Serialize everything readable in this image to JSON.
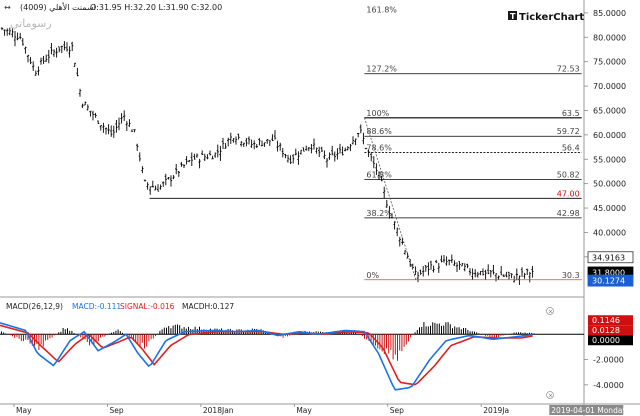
{
  "header": {
    "symbol": "اسمنت الأهلي (4009)",
    "ohlc": "O:31.95 H:32.20 L:31.90 C:32.00"
  },
  "brand": {
    "logo_text": "TickerChart",
    "watermark": "رسوماتي"
  },
  "colors": {
    "price_bars": "#000000",
    "fib_line": "#000000",
    "fib_zero_line": "#e04040",
    "macd_line": "#1a73e8",
    "signal_line": "#e02020",
    "hist_positive": "#000000",
    "hist_negative": "#d01010",
    "badge_blue": "#1a5fd6",
    "badge_red": "#d01010",
    "badge_black": "#000000"
  },
  "chart_data": [
    {
      "type": "ohlc",
      "title": "",
      "y_range": [
        28,
        86
      ],
      "y_ticks": [
        "85.0000",
        "80.0000",
        "75.0000",
        "70.0000",
        "65.0000",
        "60.0000",
        "55.0000",
        "50.0000",
        "45.0000",
        "40.0000",
        "35.0000"
      ],
      "y_tick_values": [
        85,
        80,
        75,
        70,
        65,
        60,
        55,
        50,
        45,
        40,
        35
      ],
      "x_labels": [
        "May",
        "Sep",
        "2018Jan",
        "May",
        "Sep",
        "2019Ja",
        "2019-04-01 Monday"
      ],
      "x_label_months": [
        0,
        4,
        8,
        12,
        16,
        20,
        23
      ],
      "x_range_months": [
        -0.6,
        24.4
      ],
      "price_path": [
        [
          -0.6,
          82
        ],
        [
          0.3,
          80
        ],
        [
          0.9,
          73
        ],
        [
          1.4,
          76
        ],
        [
          2,
          78
        ],
        [
          2.5,
          78
        ],
        [
          2.9,
          67
        ],
        [
          3.6,
          63
        ],
        [
          4.2,
          60
        ],
        [
          4.7,
          64
        ],
        [
          5.2,
          60
        ],
        [
          5.6,
          50
        ],
        [
          6.2,
          49
        ],
        [
          6.9,
          52
        ],
        [
          7.6,
          55
        ],
        [
          8.6,
          56
        ],
        [
          9.4,
          60
        ],
        [
          10.2,
          58
        ],
        [
          11.1,
          59
        ],
        [
          11.8,
          55
        ],
        [
          12.7,
          58
        ],
        [
          13.4,
          55
        ],
        [
          14.2,
          57
        ],
        [
          14.8,
          61
        ],
        [
          15.2,
          56
        ],
        [
          15.6,
          52
        ],
        [
          16.1,
          44
        ],
        [
          16.7,
          37
        ],
        [
          17.2,
          31
        ],
        [
          17.8,
          33
        ],
        [
          18.6,
          34
        ],
        [
          19.6,
          32
        ],
        [
          20.6,
          31.5
        ],
        [
          21.4,
          30.8
        ],
        [
          22.2,
          32
        ]
      ],
      "fibonacci": [
        {
          "ratio": "161.8%",
          "value": "",
          "price": 84.7
        },
        {
          "ratio": "127.2%",
          "value": "72.53",
          "price": 72.53
        },
        {
          "ratio": "100%",
          "value": "63.5",
          "price": 63.5
        },
        {
          "ratio": "88.6%",
          "value": "59.72",
          "price": 59.72
        },
        {
          "ratio": "78.6%",
          "value": "56.4",
          "price": 56.4
        },
        {
          "ratio": "61.8%",
          "value": "50.82",
          "price": 50.82
        },
        {
          "ratio": "",
          "value": "47.00",
          "price": 47.0
        },
        {
          "ratio": "38.2%",
          "value": "42.98",
          "price": 42.98
        },
        {
          "ratio": "0%",
          "value": "30.3",
          "price": 30.3
        }
      ],
      "price_badges": [
        {
          "label": "34.9163",
          "price": 34.9163,
          "style": "outline"
        },
        {
          "label": "31.8000",
          "price": 31.8,
          "style": "black"
        },
        {
          "label": "30.1274",
          "price": 30.1274,
          "style": "blue"
        }
      ]
    },
    {
      "type": "macd",
      "legend": {
        "name": "MACD(26,12,9)",
        "macd": "MACD:-0.111",
        "signal": "SIGNAL:-0.016",
        "macdh": "MACDH:0.127"
      },
      "y_range": [
        -5.2,
        1.6
      ],
      "y_ticks": [
        "-2.0000",
        "-4.0000"
      ],
      "y_tick_values": [
        -2,
        -4
      ],
      "macd_path": [
        [
          -0.6,
          0.9
        ],
        [
          0.5,
          0.3
        ],
        [
          1,
          -1.5
        ],
        [
          1.7,
          -2.5
        ],
        [
          2.4,
          -0.5
        ],
        [
          3,
          0.2
        ],
        [
          3.6,
          -1.3
        ],
        [
          4.3,
          -0.6
        ],
        [
          4.8,
          0
        ],
        [
          5.3,
          -1.5
        ],
        [
          5.8,
          -2.6
        ],
        [
          6.5,
          -0.5
        ],
        [
          7.3,
          0.2
        ],
        [
          8.5,
          0.3
        ],
        [
          9.5,
          0.2
        ],
        [
          10.5,
          0.3
        ],
        [
          11.3,
          -0.1
        ],
        [
          12.2,
          0.2
        ],
        [
          13,
          0
        ],
        [
          14.2,
          0.3
        ],
        [
          15,
          0.2
        ],
        [
          15.6,
          -1.5
        ],
        [
          16.3,
          -4.4
        ],
        [
          17,
          -4.2
        ],
        [
          17.8,
          -2
        ],
        [
          18.5,
          -0.5
        ],
        [
          19.5,
          -0.1
        ],
        [
          20.5,
          -0.4
        ],
        [
          21.5,
          -0.2
        ],
        [
          22.3,
          0
        ]
      ],
      "signal_path": [
        [
          -0.6,
          0.7
        ],
        [
          0.6,
          0.1
        ],
        [
          1.2,
          -1
        ],
        [
          1.9,
          -2.2
        ],
        [
          2.6,
          -0.8
        ],
        [
          3.2,
          0
        ],
        [
          3.8,
          -1.1
        ],
        [
          4.5,
          -0.6
        ],
        [
          5,
          -0.2
        ],
        [
          5.5,
          -1.2
        ],
        [
          6,
          -2.4
        ],
        [
          6.7,
          -0.9
        ],
        [
          7.5,
          0
        ],
        [
          8.7,
          0.2
        ],
        [
          9.7,
          0.2
        ],
        [
          10.7,
          0.2
        ],
        [
          11.5,
          0
        ],
        [
          12.4,
          0.1
        ],
        [
          13.2,
          0
        ],
        [
          14.4,
          0.2
        ],
        [
          15.2,
          0.1
        ],
        [
          15.8,
          -1.1
        ],
        [
          16.5,
          -3.8
        ],
        [
          17.2,
          -4
        ],
        [
          18,
          -2.5
        ],
        [
          18.7,
          -0.9
        ],
        [
          19.7,
          -0.2
        ],
        [
          20.7,
          -0.3
        ],
        [
          21.7,
          -0.3
        ],
        [
          22.3,
          -0.1
        ]
      ],
      "histogram_envelope": [
        [
          -0.6,
          0.3
        ],
        [
          1.1,
          -1.3
        ],
        [
          2.2,
          0.7
        ],
        [
          3.3,
          -1
        ],
        [
          4.4,
          0.5
        ],
        [
          5.6,
          -1.3
        ],
        [
          6.5,
          0.9
        ],
        [
          7.5,
          0.7
        ],
        [
          8.5,
          0.5
        ],
        [
          9.5,
          0.4
        ],
        [
          10.5,
          0.5
        ],
        [
          11.5,
          -0.3
        ],
        [
          12.5,
          0.3
        ],
        [
          13.5,
          0.2
        ],
        [
          14.5,
          0.4
        ],
        [
          15.6,
          -1.3
        ],
        [
          16.4,
          -2.2
        ],
        [
          17.4,
          1
        ],
        [
          18.4,
          1.1
        ],
        [
          19.5,
          0.4
        ],
        [
          20.5,
          -0.4
        ],
        [
          21.5,
          0.2
        ],
        [
          22.3,
          0.1
        ]
      ],
      "badges": [
        {
          "label": "0.1146",
          "value": 0.1146,
          "style": "red"
        },
        {
          "label": "0.0128",
          "value": 0.0128,
          "style": "red"
        },
        {
          "label": "0.0000",
          "value": 0.0,
          "style": "black"
        }
      ]
    }
  ]
}
